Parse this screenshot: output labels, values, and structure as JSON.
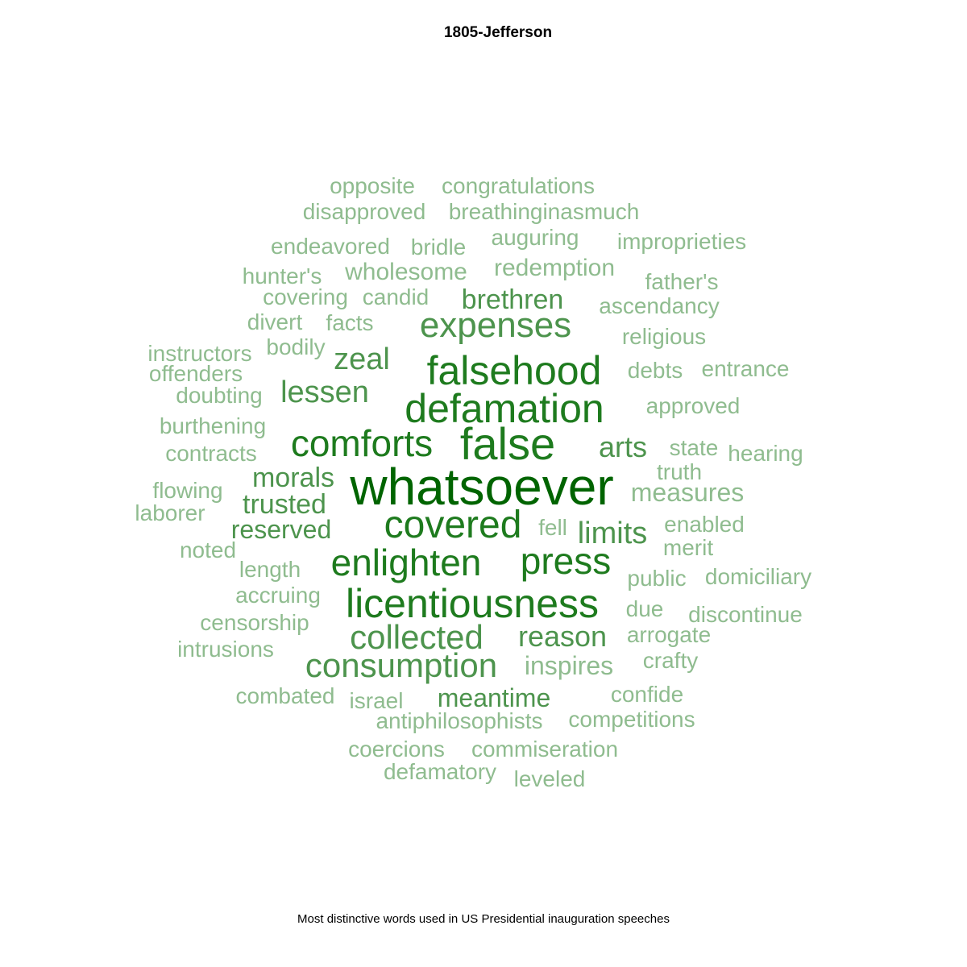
{
  "chart_data": {
    "type": "wordcloud",
    "title": "1805-Jefferson",
    "caption": "Most distinctive words used in US Presidential inauguration speeches",
    "colors": {
      "tier1": "#006400",
      "tier2": "#1e7b1e",
      "tier3": "#4d944d",
      "tier4": "#8fbc8f"
    },
    "words": [
      {
        "text": "whatsoever",
        "weight": 10,
        "tier": 1
      },
      {
        "text": "false",
        "weight": 9,
        "tier": 2
      },
      {
        "text": "falsehood",
        "weight": 8,
        "tier": 2
      },
      {
        "text": "defamation",
        "weight": 8,
        "tier": 2
      },
      {
        "text": "licentiousness",
        "weight": 8,
        "tier": 2
      },
      {
        "text": "comforts",
        "weight": 7,
        "tier": 2
      },
      {
        "text": "covered",
        "weight": 7,
        "tier": 2
      },
      {
        "text": "enlighten",
        "weight": 7,
        "tier": 2
      },
      {
        "text": "press",
        "weight": 7,
        "tier": 2
      },
      {
        "text": "expenses",
        "weight": 7,
        "tier": 3
      },
      {
        "text": "consumption",
        "weight": 6,
        "tier": 3
      },
      {
        "text": "collected",
        "weight": 6,
        "tier": 3
      },
      {
        "text": "zeal",
        "weight": 5,
        "tier": 3
      },
      {
        "text": "lessen",
        "weight": 5,
        "tier": 3
      },
      {
        "text": "arts",
        "weight": 5,
        "tier": 3
      },
      {
        "text": "limits",
        "weight": 5,
        "tier": 3
      },
      {
        "text": "reason",
        "weight": 5,
        "tier": 3
      },
      {
        "text": "brethren",
        "weight": 5,
        "tier": 3
      },
      {
        "text": "morals",
        "weight": 5,
        "tier": 3
      },
      {
        "text": "trusted",
        "weight": 5,
        "tier": 3
      },
      {
        "text": "meantime",
        "weight": 4,
        "tier": 3
      },
      {
        "text": "reserved",
        "weight": 4,
        "tier": 3
      },
      {
        "text": "inspires",
        "weight": 4,
        "tier": 4
      },
      {
        "text": "measures",
        "weight": 4,
        "tier": 4
      },
      {
        "text": "redemption",
        "weight": 4,
        "tier": 4
      },
      {
        "text": "wholesome",
        "weight": 4,
        "tier": 4
      },
      {
        "text": "opposite",
        "weight": 3,
        "tier": 4
      },
      {
        "text": "congratulations",
        "weight": 3,
        "tier": 4
      },
      {
        "text": "disapproved",
        "weight": 3,
        "tier": 4
      },
      {
        "text": "breathinginasmuch",
        "weight": 3,
        "tier": 4
      },
      {
        "text": "endeavored",
        "weight": 3,
        "tier": 4
      },
      {
        "text": "bridle",
        "weight": 3,
        "tier": 4
      },
      {
        "text": "auguring",
        "weight": 3,
        "tier": 4
      },
      {
        "text": "improprieties",
        "weight": 3,
        "tier": 4
      },
      {
        "text": "hunter's",
        "weight": 3,
        "tier": 4
      },
      {
        "text": "father's",
        "weight": 3,
        "tier": 4
      },
      {
        "text": "covering",
        "weight": 3,
        "tier": 4
      },
      {
        "text": "candid",
        "weight": 3,
        "tier": 4
      },
      {
        "text": "ascendancy",
        "weight": 3,
        "tier": 4
      },
      {
        "text": "divert",
        "weight": 3,
        "tier": 4
      },
      {
        "text": "facts",
        "weight": 3,
        "tier": 4
      },
      {
        "text": "religious",
        "weight": 3,
        "tier": 4
      },
      {
        "text": "instructors",
        "weight": 3,
        "tier": 4
      },
      {
        "text": "bodily",
        "weight": 3,
        "tier": 4
      },
      {
        "text": "offenders",
        "weight": 3,
        "tier": 4
      },
      {
        "text": "debts",
        "weight": 3,
        "tier": 4
      },
      {
        "text": "entrance",
        "weight": 3,
        "tier": 4
      },
      {
        "text": "doubting",
        "weight": 3,
        "tier": 4
      },
      {
        "text": "approved",
        "weight": 3,
        "tier": 4
      },
      {
        "text": "burthening",
        "weight": 3,
        "tier": 4
      },
      {
        "text": "contracts",
        "weight": 3,
        "tier": 4
      },
      {
        "text": "state",
        "weight": 3,
        "tier": 4
      },
      {
        "text": "hearing",
        "weight": 3,
        "tier": 4
      },
      {
        "text": "truth",
        "weight": 3,
        "tier": 4
      },
      {
        "text": "flowing",
        "weight": 3,
        "tier": 4
      },
      {
        "text": "laborer",
        "weight": 3,
        "tier": 4
      },
      {
        "text": "fell",
        "weight": 3,
        "tier": 4
      },
      {
        "text": "enabled",
        "weight": 3,
        "tier": 4
      },
      {
        "text": "noted",
        "weight": 3,
        "tier": 4
      },
      {
        "text": "merit",
        "weight": 3,
        "tier": 4
      },
      {
        "text": "length",
        "weight": 3,
        "tier": 4
      },
      {
        "text": "public",
        "weight": 3,
        "tier": 4
      },
      {
        "text": "domiciliary",
        "weight": 3,
        "tier": 4
      },
      {
        "text": "accruing",
        "weight": 3,
        "tier": 4
      },
      {
        "text": "due",
        "weight": 3,
        "tier": 4
      },
      {
        "text": "censorship",
        "weight": 3,
        "tier": 4
      },
      {
        "text": "discontinue",
        "weight": 3,
        "tier": 4
      },
      {
        "text": "arrogate",
        "weight": 3,
        "tier": 4
      },
      {
        "text": "intrusions",
        "weight": 3,
        "tier": 4
      },
      {
        "text": "crafty",
        "weight": 3,
        "tier": 4
      },
      {
        "text": "combated",
        "weight": 3,
        "tier": 4
      },
      {
        "text": "israel",
        "weight": 3,
        "tier": 4
      },
      {
        "text": "confide",
        "weight": 3,
        "tier": 4
      },
      {
        "text": "antiphilosophists",
        "weight": 3,
        "tier": 4
      },
      {
        "text": "competitions",
        "weight": 3,
        "tier": 4
      },
      {
        "text": "coercions",
        "weight": 3,
        "tier": 4
      },
      {
        "text": "commiseration",
        "weight": 3,
        "tier": 4
      },
      {
        "text": "defamatory",
        "weight": 3,
        "tier": 4
      },
      {
        "text": "leveled",
        "weight": 3,
        "tier": 4
      }
    ]
  }
}
